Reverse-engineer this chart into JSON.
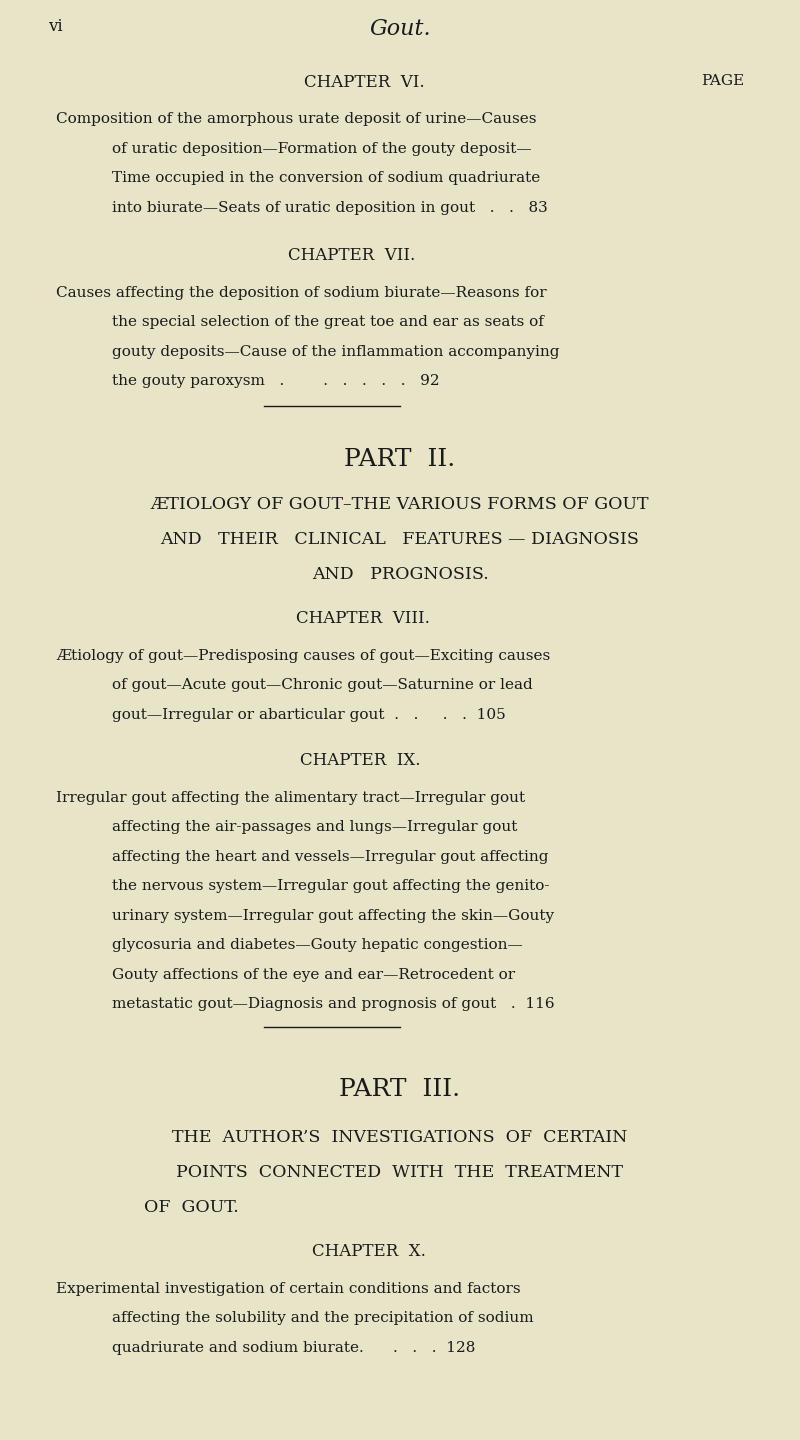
{
  "bg_color": "#e8e4c8",
  "text_color": "#1a1a1a",
  "page_width": 8.0,
  "page_height": 14.4,
  "header_left": "vi",
  "header_center": "Gout.",
  "chapter6_heading": "CHAPTER  VI.",
  "chapter6_page_label": "PAGE",
  "chapter6_text_line1": "Composition of the amorphous urate deposit of urine—Causes",
  "chapter6_text_line2": "of uratic deposition—Formation of the gouty deposit—",
  "chapter6_text_line3": "Time occupied in the conversion of sodium quadriurate",
  "chapter6_text_line4": "into biurate—Seats of uratic deposition in gout   .   .   83",
  "chapter7_heading": "CHAPTER  VII.",
  "chapter7_text_line1": "Causes affecting the deposition of sodium biurate—Reasons for",
  "chapter7_text_line2": "the special selection of the great toe and ear as seats of",
  "chapter7_text_line3": "gouty deposits—Cause of the inflammation accompanying",
  "chapter7_text_line4": "the gouty paroxysm   .        .   .   .   .   .   92",
  "part2_heading": "PART  II.",
  "part2_sub1": "ÆTIOLOGY OF GOUT–THE VARIOUS FORMS OF GOUT",
  "part2_sub2": "AND   THEIR   CLINICAL   FEATURES — DIAGNOSIS",
  "part2_sub3": "AND   PROGNOSIS.",
  "chapter8_heading": "CHAPTER  VIII.",
  "chapter8_text_line1": "Ætiology of gout—Predisposing causes of gout—Exciting causes",
  "chapter8_text_line2": "of gout—Acute gout—Chronic gout—Saturnine or lead",
  "chapter8_text_line3": "gout—Irregular or abarticular gout  .   .     .   .  105",
  "chapter9_heading": "CHAPTER  IX.",
  "chapter9_text_line1": "Irregular gout affecting the alimentary tract—Irregular gout",
  "chapter9_text_line2": "affecting the air-passages and lungs—Irregular gout",
  "chapter9_text_line3": "affecting the heart and vessels—Irregular gout affecting",
  "chapter9_text_line4": "the nervous system—Irregular gout affecting the genito-",
  "chapter9_text_line5": "urinary system—Irregular gout affecting the skin—Gouty",
  "chapter9_text_line6": "glycosuria and diabetes—Gouty hepatic congestion—",
  "chapter9_text_line7": "Gouty affections of the eye and ear—Retrocedent or",
  "chapter9_text_line8": "metastatic gout—Diagnosis and prognosis of gout   .  116",
  "part3_heading": "PART  III.",
  "part3_sub1": "THE  AUTHOR’S  INVESTIGATIONS  OF  CERTAIN",
  "part3_sub2": "POINTS  CONNECTED  WITH  THE  TREATMENT",
  "part3_sub3": "OF  GOUT.",
  "chapter10_heading": "CHAPTER  X.",
  "chapter10_text_line1": "Experimental investigation of certain conditions and factors",
  "chapter10_text_line2": "affecting the solubility and the precipitation of sodium",
  "chapter10_text_line3": "quadriurate and sodium biurate.      .   .   .  128"
}
